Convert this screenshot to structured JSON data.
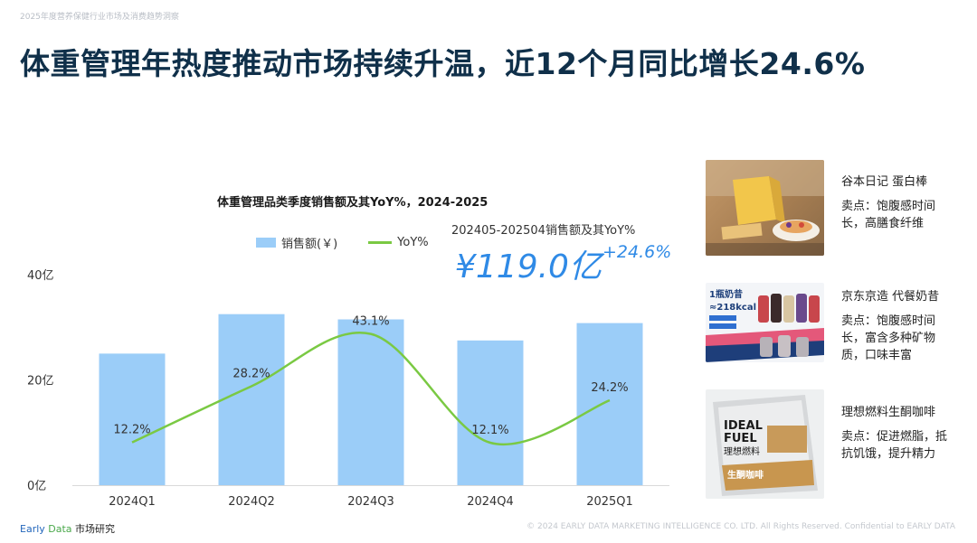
{
  "header": {
    "report_note": "2025年度营养保健行业市场及消费趋势洞察",
    "title": "体重管理年热度推动市场持续升温，近12个月同比增长24.6%"
  },
  "kpi": {
    "caption": "202405-202504销售额及其YoY%",
    "value": "¥119.0亿",
    "growth": "+24.6%"
  },
  "chart_data": {
    "type": "bar",
    "title": "体重管理品类季度销售额及其YoY%，2024-2025",
    "categories": [
      "2024Q1",
      "2024Q2",
      "2024Q3",
      "2024Q4",
      "2025Q1"
    ],
    "series": [
      {
        "name": "销售额(￥)",
        "type": "bar",
        "values": [
          25.0,
          32.5,
          31.5,
          27.5,
          30.8
        ],
        "axis": "left",
        "color": "#9bcdf8"
      },
      {
        "name": "YoY%",
        "type": "line",
        "values": [
          12.2,
          28.2,
          43.1,
          12.1,
          24.2
        ],
        "data_labels": [
          "12.2%",
          "28.2%",
          "43.1%",
          "12.1%",
          "24.2%"
        ],
        "axis": "right",
        "color": "#7ac943"
      }
    ],
    "y_ticks": [
      "0亿",
      "20亿",
      "40亿"
    ],
    "ylim": [
      0,
      40
    ],
    "y2lim": [
      0,
      60
    ],
    "legend": "top",
    "grid": false
  },
  "products": [
    {
      "name": "谷本日记 蛋白棒",
      "desc": "卖点：饱腹感时间长，高膳食纤维"
    },
    {
      "name": "京东京造 代餐奶昔",
      "desc": "卖点：饱腹感时间长，富含多种矿物质，口味丰富",
      "image_text": [
        "1瓶奶昔",
        "≈218kcal"
      ]
    },
    {
      "name": "理想燃料生酮咖啡",
      "desc": "卖点：促进燃脂，抵抗饥饿，提升精力",
      "image_text": [
        "IDEAL",
        "FUEL",
        "理想燃料",
        "生酮咖啡"
      ]
    }
  ],
  "footer": {
    "brand_part1": "Early",
    "brand_part2": "Data",
    "brand_part3": "市场研究",
    "copyright": "© 2024 EARLY DATA MARKETING INTELLIGENCE CO. LTD. All Rights Reserved. Confidential to EARLY DATA"
  }
}
